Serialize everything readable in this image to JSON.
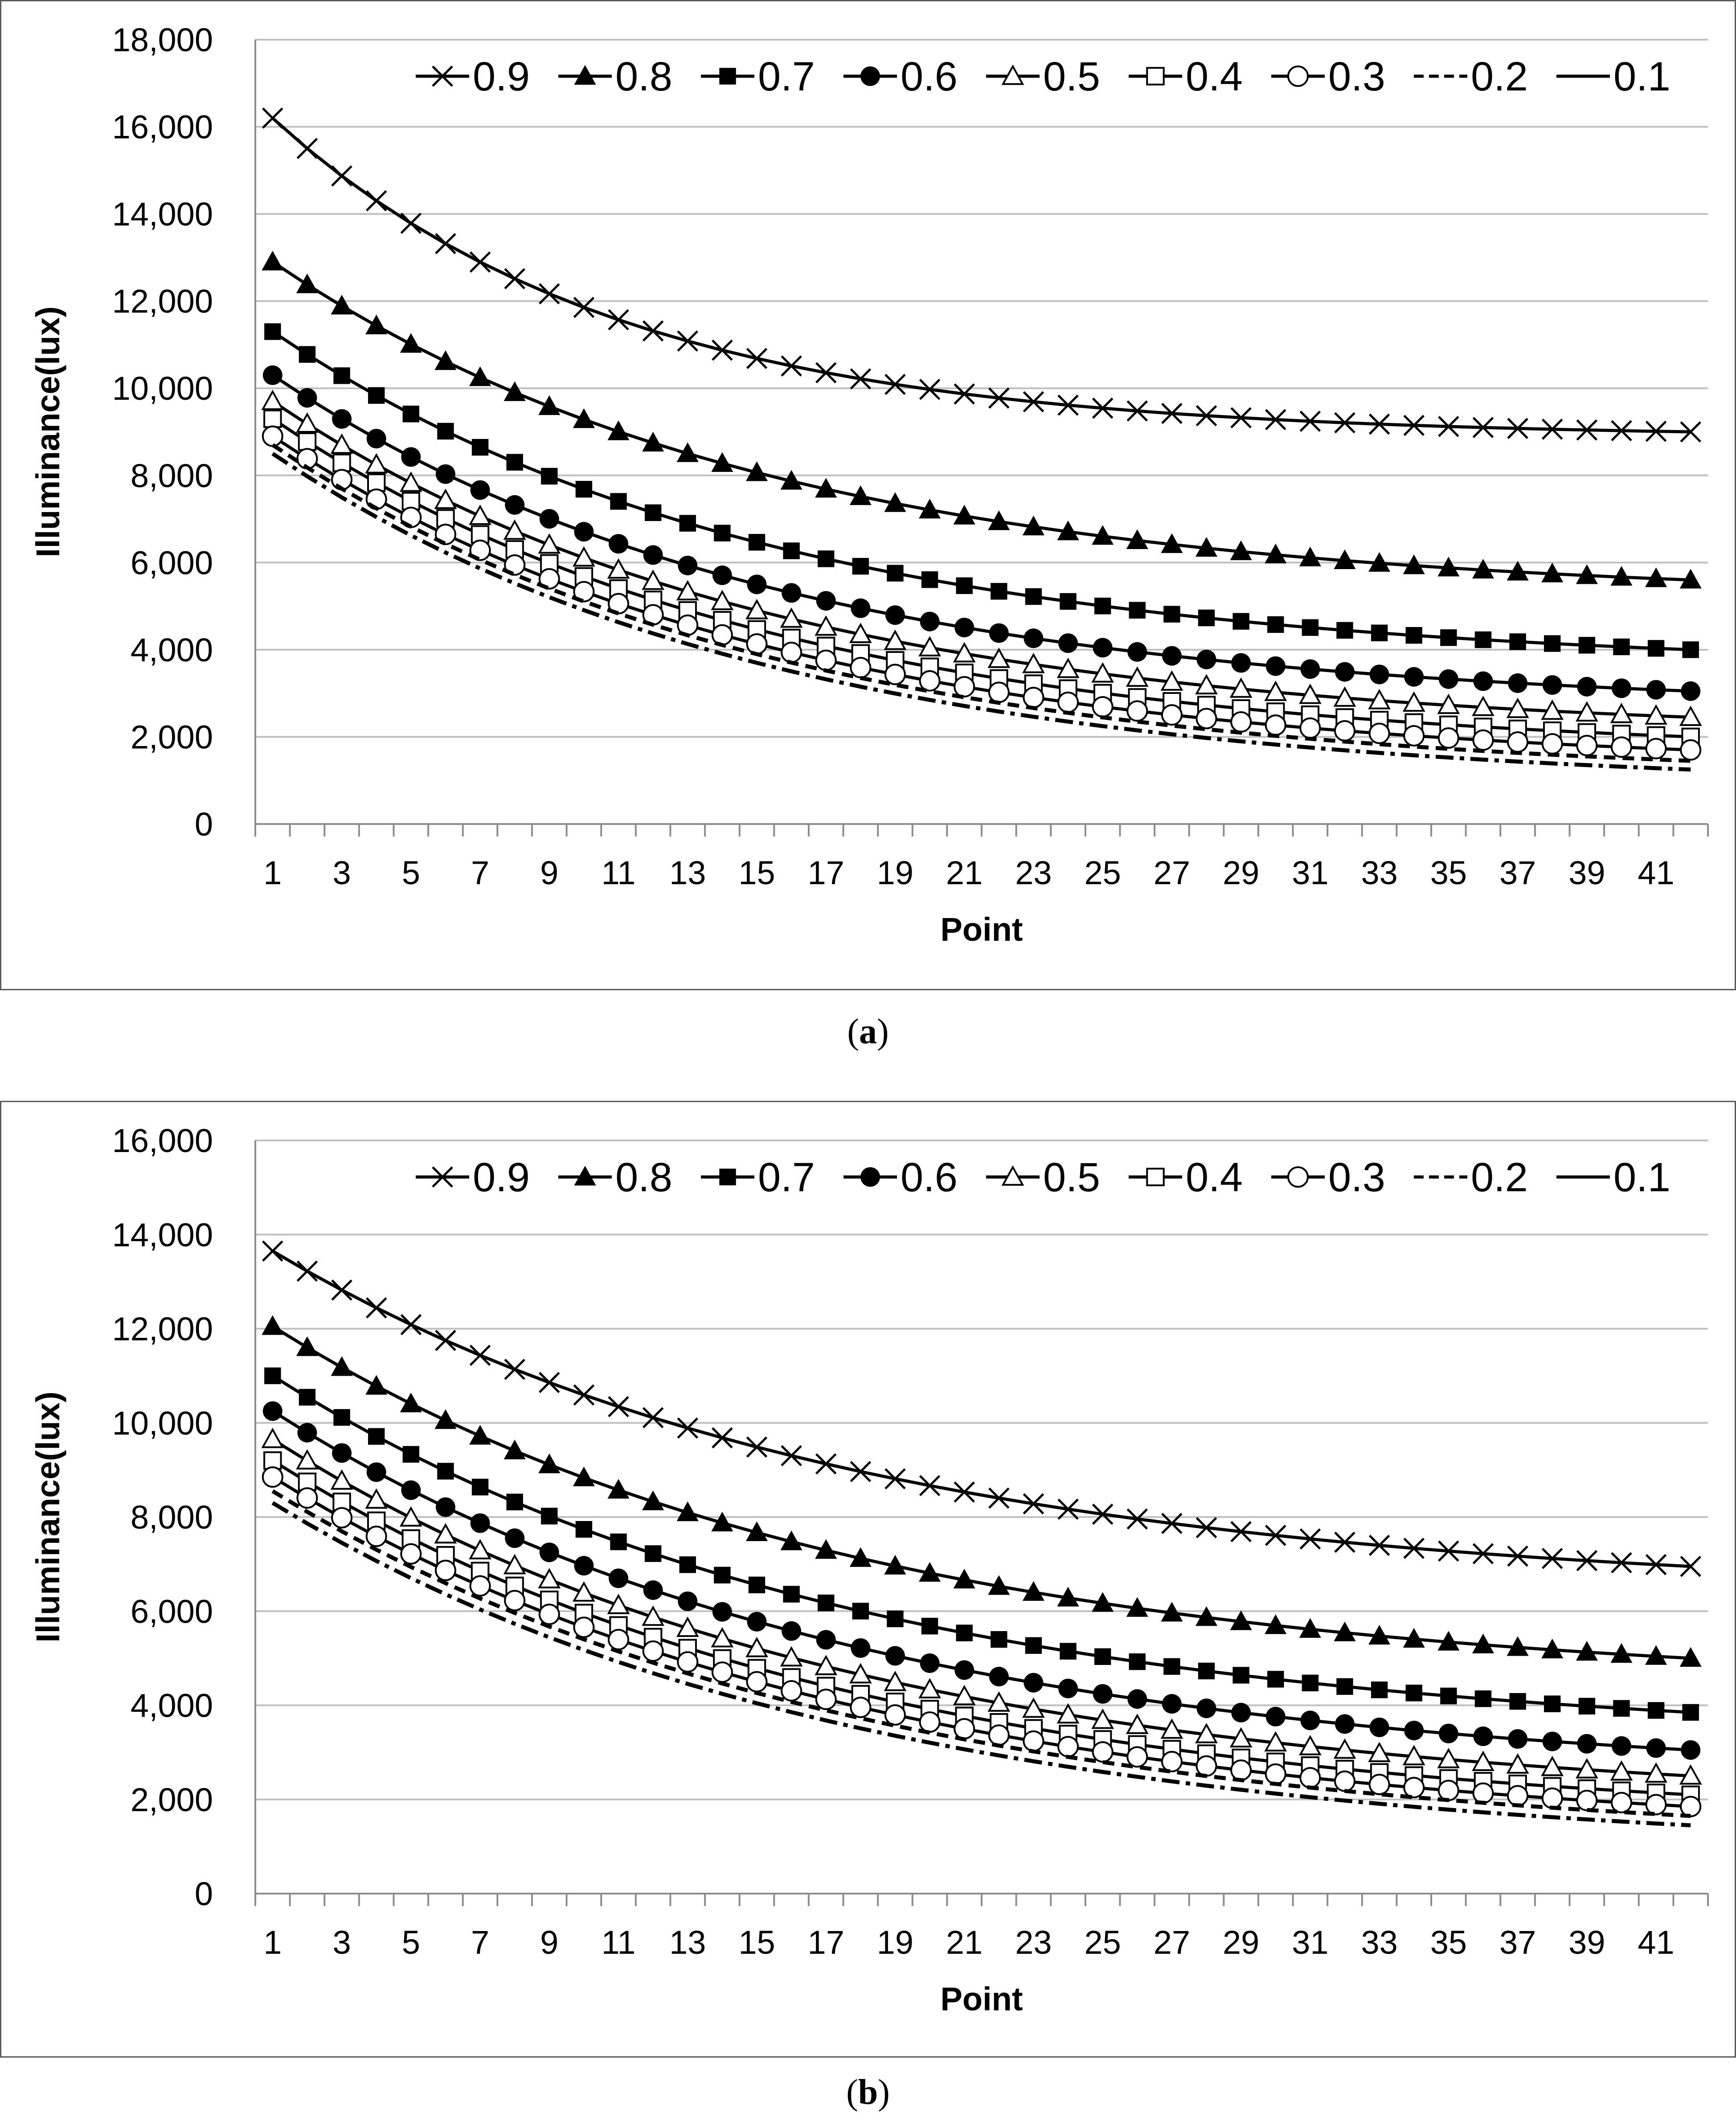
{
  "captions": {
    "a": "(a)",
    "b": "(b)",
    "a_open": "(",
    "a_letter": "a",
    "a_close": ")",
    "b_open": "(",
    "b_letter": "b",
    "b_close": ")"
  },
  "legend": [
    {
      "label": "0.9",
      "marker": "x-icon",
      "line": "solid"
    },
    {
      "label": "0.8",
      "marker": "filled-triangle-icon",
      "line": "solid"
    },
    {
      "label": "0.7",
      "marker": "filled-square-icon",
      "line": "solid"
    },
    {
      "label": "0.6",
      "marker": "filled-circle-icon",
      "line": "solid"
    },
    {
      "label": "0.5",
      "marker": "open-triangle-icon",
      "line": "solid"
    },
    {
      "label": "0.4",
      "marker": "open-square-icon",
      "line": "solid"
    },
    {
      "label": "0.3",
      "marker": "open-circle-icon",
      "line": "solid"
    },
    {
      "label": "0.2",
      "marker": "none",
      "line": "dashed"
    },
    {
      "label": "0.1",
      "marker": "none",
      "line": "solid"
    }
  ],
  "colors": {
    "line": "#000000",
    "grid": "#bfbfbf",
    "frame": "#5a5a5a",
    "background": "#ffffff"
  },
  "chart_data": [
    {
      "id": "a",
      "type": "line",
      "caption": "(a)",
      "xlabel": "Point",
      "ylabel": "Illuminance(lux)",
      "x_points": 42,
      "x_tick_labels": [
        "1",
        "3",
        "5",
        "7",
        "9",
        "11",
        "13",
        "15",
        "17",
        "19",
        "21",
        "23",
        "25",
        "27",
        "29",
        "31",
        "33",
        "35",
        "37",
        "39",
        "41"
      ],
      "ylim": [
        0,
        18000
      ],
      "y_tick_labels": [
        "0",
        "2,000",
        "4,000",
        "6,000",
        "8,000",
        "10,000",
        "12,000",
        "14,000",
        "16,000",
        "18,000"
      ],
      "grid": "horizontal",
      "legend_position": "top",
      "series": [
        {
          "name": "0.9",
          "start": 16200,
          "end": 9000,
          "k": 0.1,
          "marker": "x"
        },
        {
          "name": "0.8",
          "start": 12900,
          "end": 5600,
          "k": 0.07,
          "marker": "filled-triangle"
        },
        {
          "name": "0.7",
          "start": 11300,
          "end": 4000,
          "k": 0.07,
          "marker": "filled-square"
        },
        {
          "name": "0.6",
          "start": 10300,
          "end": 3050,
          "k": 0.07,
          "marker": "filled-circle"
        },
        {
          "name": "0.5",
          "start": 9700,
          "end": 2450,
          "k": 0.07,
          "marker": "open-triangle"
        },
        {
          "name": "0.4",
          "start": 9300,
          "end": 2000,
          "k": 0.07,
          "marker": "open-square"
        },
        {
          "name": "0.3",
          "start": 8900,
          "end": 1700,
          "k": 0.07,
          "marker": "open-circle"
        },
        {
          "name": "0.2",
          "start": 8700,
          "end": 1450,
          "k": 0.07,
          "marker": "dashed"
        },
        {
          "name": "0.1",
          "start": 8500,
          "end": 1250,
          "k": 0.07,
          "marker": "dashdot"
        }
      ]
    },
    {
      "id": "b",
      "type": "line",
      "caption": "(b)",
      "xlabel": "Point",
      "ylabel": "Illuminance(lux)",
      "x_points": 42,
      "x_tick_labels": [
        "1",
        "3",
        "5",
        "7",
        "9",
        "11",
        "13",
        "15",
        "17",
        "19",
        "21",
        "23",
        "25",
        "27",
        "29",
        "31",
        "33",
        "35",
        "37",
        "39",
        "41"
      ],
      "ylim": [
        0,
        16000
      ],
      "y_tick_labels": [
        "0",
        "2,000",
        "4,000",
        "6,000",
        "8,000",
        "10,000",
        "12,000",
        "14,000",
        "16,000"
      ],
      "grid": "horizontal",
      "legend_position": "top",
      "series": [
        {
          "name": "0.9",
          "start": 13650,
          "end": 6950,
          "k": 0.06,
          "marker": "x"
        },
        {
          "name": "0.8",
          "start": 12050,
          "end": 5000,
          "k": 0.06,
          "marker": "filled-triangle"
        },
        {
          "name": "0.7",
          "start": 11000,
          "end": 3850,
          "k": 0.06,
          "marker": "filled-square"
        },
        {
          "name": "0.6",
          "start": 10250,
          "end": 3050,
          "k": 0.06,
          "marker": "filled-circle"
        },
        {
          "name": "0.5",
          "start": 9650,
          "end": 2500,
          "k": 0.06,
          "marker": "open-triangle"
        },
        {
          "name": "0.4",
          "start": 9200,
          "end": 2100,
          "k": 0.06,
          "marker": "open-square"
        },
        {
          "name": "0.3",
          "start": 8850,
          "end": 1850,
          "k": 0.06,
          "marker": "open-circle"
        },
        {
          "name": "0.2",
          "start": 8550,
          "end": 1650,
          "k": 0.06,
          "marker": "dashed"
        },
        {
          "name": "0.1",
          "start": 8300,
          "end": 1450,
          "k": 0.06,
          "marker": "dashdot"
        }
      ]
    }
  ]
}
